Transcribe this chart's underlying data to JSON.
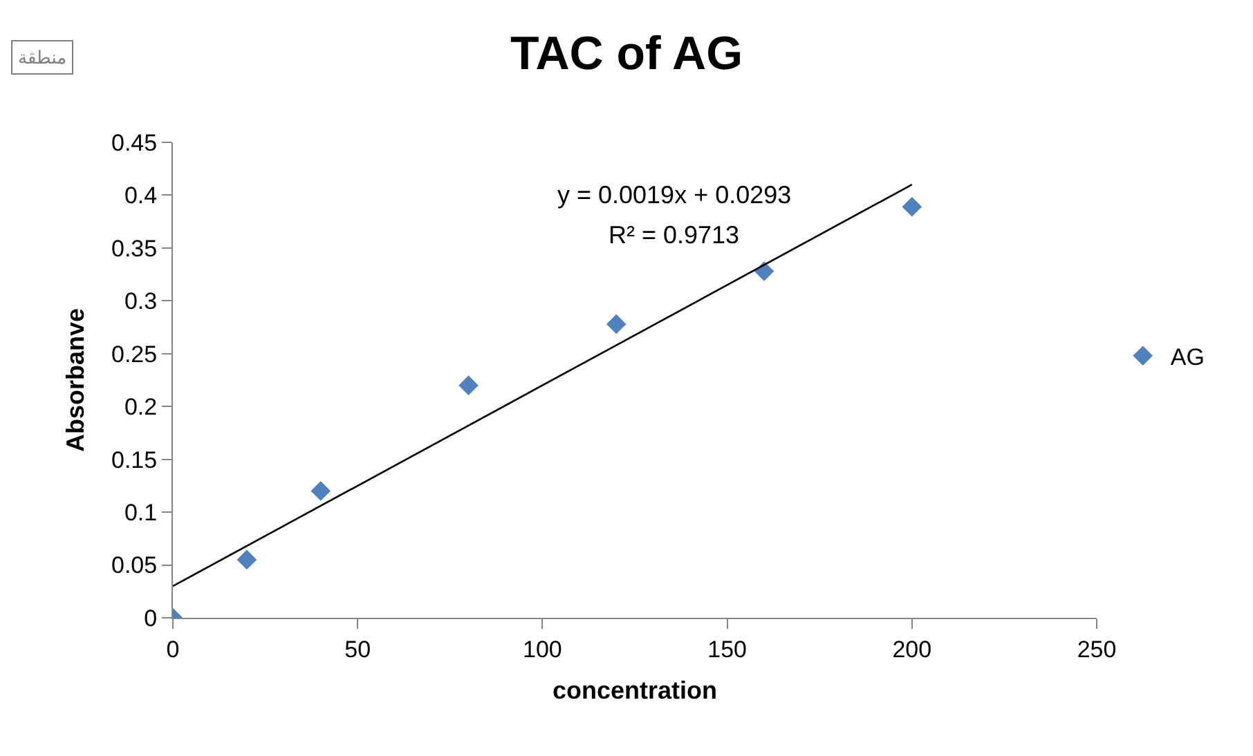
{
  "chart_data": {
    "type": "scatter",
    "title": "TAC of AG",
    "xlabel": "concentration",
    "ylabel": "Absorbanve",
    "x": [
      0,
      20,
      40,
      80,
      120,
      160,
      200
    ],
    "series": [
      {
        "name": "AG",
        "color": "#4f81bd",
        "values": [
          0,
          0.055,
          0.12,
          0.22,
          0.278,
          0.328,
          0.389
        ]
      },
      {
        "type": "line",
        "x": [
          0,
          200
        ],
        "color": "#000000",
        "values": [
          0.03,
          0.41
        ],
        "marker": "none"
      }
    ],
    "marker": "diamond",
    "xlim": [
      0,
      250
    ],
    "xticks": [
      0,
      50,
      100,
      150,
      200,
      250
    ],
    "ylim": [
      0,
      0.45
    ],
    "yticks": [
      0,
      0.05,
      0.1,
      0.15,
      0.2,
      0.25,
      0.3,
      0.35,
      0.4,
      0.45
    ],
    "grid": false,
    "legend": "right",
    "annotations": [
      "منطقة",
      "y = 0.0019x + 0.0293",
      "R² = 0.9713"
    ]
  }
}
